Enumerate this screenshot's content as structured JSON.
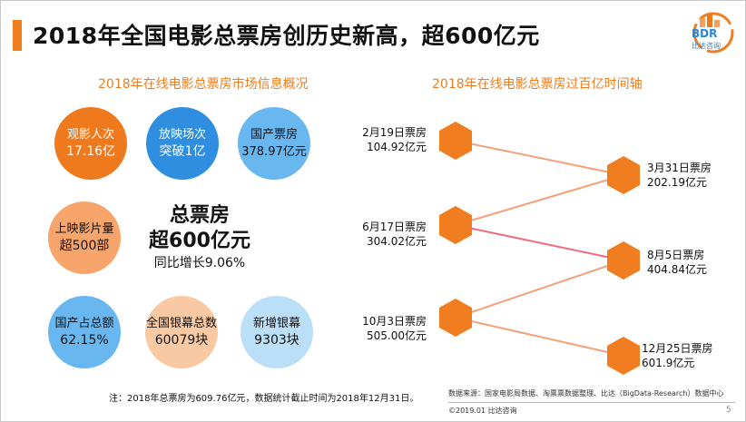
{
  "header": {
    "title": "2018年全国电影总票房创历史新高，超600亿元"
  },
  "logo": {
    "text": "BDR",
    "subtext": "比达咨询"
  },
  "left_section": {
    "title": "2018年在线电影总票房市场信息概况",
    "stats": [
      {
        "label": "观影人次",
        "value": "17.16亿"
      },
      {
        "label": "放映场次",
        "value": "突破1亿"
      },
      {
        "label": "国产票房",
        "value": "378.97亿元"
      },
      {
        "label": "上映影片量",
        "value": "超500部"
      },
      {
        "label": "国产占总额",
        "value": "62.15%"
      },
      {
        "label": "全国银幕总数",
        "value": "60079块"
      },
      {
        "label": "新增银幕",
        "value": "9303块"
      }
    ],
    "total": {
      "line1": "总票房",
      "line2": "超600亿元",
      "line3": "同比增长9.06%"
    }
  },
  "right_section": {
    "title": "2018年在线电影总票房过百亿时间轴",
    "milestones": [
      {
        "date": "2月19日票房",
        "value": "104.92亿元"
      },
      {
        "date": "3月31日票房",
        "value": "202.19亿元"
      },
      {
        "date": "6月17日票房",
        "value": "304.02亿元"
      },
      {
        "date": "8月5日票房",
        "value": "404.84亿元"
      },
      {
        "date": "10月3日票房",
        "value": "505.00亿元"
      },
      {
        "date": "12月25日票房",
        "value": "601.9亿元"
      }
    ]
  },
  "footer": {
    "note": "注：2018年总票房为609.76亿元，数据统计截止时间为2018年12月31日。",
    "source": "数据来源：国家电影局数据、淘票票数据整理、比达（BigData-Research）数据中心",
    "copyright": "©2019.01  比达咨询",
    "page_number": "5"
  },
  "colors": {
    "accent": "#f07d1f",
    "blue": "#2f8ee0",
    "timeline_line": "#f4a078",
    "timeline_highlight": "#f06a7c"
  }
}
